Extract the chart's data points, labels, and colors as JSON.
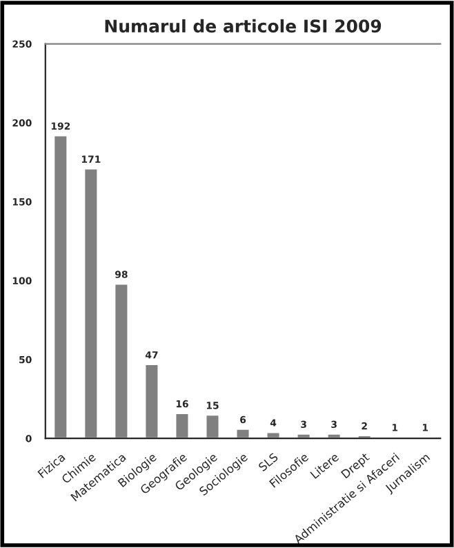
{
  "chart_data": {
    "type": "bar",
    "title": "Numarul de articole ISI 2009",
    "categories": [
      "Fizica",
      "Chimie",
      "Matematica",
      "Biologie",
      "Geografie",
      "Geologie",
      "Sociologie",
      "SLS",
      "Filosofie",
      "Litere",
      "Drept",
      "Administratie si Afaceri",
      "Jurnalism"
    ],
    "values": [
      192,
      171,
      98,
      47,
      16,
      15,
      6,
      4,
      3,
      3,
      2,
      1,
      1
    ],
    "color": "#808080",
    "ylim": [
      0,
      250
    ],
    "yticks": [
      0,
      50,
      100,
      150,
      200,
      250
    ],
    "grid": false,
    "data_labels": true
  }
}
